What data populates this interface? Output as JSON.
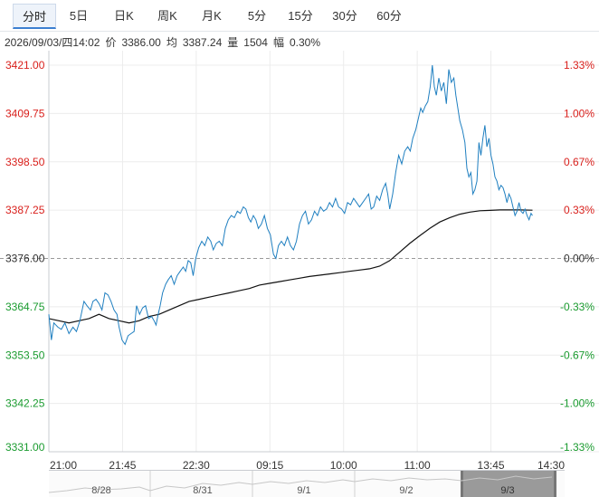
{
  "tabs": [
    {
      "label": "分时",
      "active": true
    },
    {
      "label": "5日",
      "active": false
    },
    {
      "label": "日K",
      "active": false
    },
    {
      "label": "周K",
      "active": false
    },
    {
      "label": "月K",
      "active": false
    },
    {
      "label": "5分",
      "active": false
    },
    {
      "label": "15分",
      "active": false
    },
    {
      "label": "30分",
      "active": false
    },
    {
      "label": "60分",
      "active": false
    }
  ],
  "info": {
    "datetime": "2026/09/03/四14:02",
    "price_label": "价",
    "price": "3386.00",
    "avg_label": "均",
    "avg": "3387.24",
    "volume_label": "量",
    "volume": "1504",
    "amplitude_label": "幅",
    "amplitude": "0.30%"
  },
  "colors": {
    "up": "#d9201c",
    "down": "#1a9b2f",
    "neutral": "#333333",
    "price_line": "#1f7fc0",
    "avg_line": "#111111",
    "grid": "#ececec",
    "ref_line": "#999999"
  },
  "chart_data": {
    "type": "line",
    "reference": 3376.0,
    "ylim": [
      3331.0,
      3421.0
    ],
    "y_ticks": [
      {
        "value": "3421.00",
        "pct": "1.33%",
        "dir": "up"
      },
      {
        "value": "3409.75",
        "pct": "1.00%",
        "dir": "up"
      },
      {
        "value": "3398.50",
        "pct": "0.67%",
        "dir": "up"
      },
      {
        "value": "3387.25",
        "pct": "0.33%",
        "dir": "up"
      },
      {
        "value": "3376.00",
        "pct": "0.00%",
        "dir": "flat"
      },
      {
        "value": "3364.75",
        "pct": "-0.33%",
        "dir": "down"
      },
      {
        "value": "3353.50",
        "pct": "-0.67%",
        "dir": "down"
      },
      {
        "value": "3342.25",
        "pct": "-1.00%",
        "dir": "down"
      },
      {
        "value": "3331.00",
        "pct": "-1.33%",
        "dir": "down"
      }
    ],
    "x_ticks": [
      "21:00",
      "21:45",
      "22:30",
      "09:15",
      "10:00",
      "11:00",
      "13:45",
      "14:30"
    ],
    "x_index_range": [
      0,
      100
    ],
    "x_tick_index": [
      0,
      14.7,
      29.4,
      44.1,
      58.8,
      73.5,
      88.2,
      102.9
    ],
    "series": [
      {
        "key": "price",
        "points": [
          [
            0,
            3363
          ],
          [
            0.5,
            3357
          ],
          [
            1,
            3361
          ],
          [
            1.8,
            3360
          ],
          [
            2.5,
            3359.5
          ],
          [
            3.2,
            3361
          ],
          [
            4,
            3358.5
          ],
          [
            4.8,
            3360
          ],
          [
            5.5,
            3359
          ],
          [
            6.2,
            3361.5
          ],
          [
            7,
            3366
          ],
          [
            7.6,
            3365
          ],
          [
            8.3,
            3364
          ],
          [
            8.8,
            3366
          ],
          [
            9.4,
            3366.5
          ],
          [
            10,
            3365.5
          ],
          [
            10.6,
            3364
          ],
          [
            11.2,
            3368
          ],
          [
            11.8,
            3367.5
          ],
          [
            12.4,
            3366
          ],
          [
            13,
            3364
          ],
          [
            13.6,
            3363
          ],
          [
            14,
            3360
          ],
          [
            14.6,
            3357
          ],
          [
            15.2,
            3356
          ],
          [
            15.8,
            3358
          ],
          [
            16.4,
            3358.5
          ],
          [
            17,
            3359
          ],
          [
            17.5,
            3365
          ],
          [
            18.1,
            3363
          ],
          [
            18.7,
            3364.5
          ],
          [
            19.3,
            3365
          ],
          [
            19.9,
            3362
          ],
          [
            20.5,
            3362.5
          ],
          [
            21,
            3361.5
          ],
          [
            21.4,
            3360.5
          ],
          [
            21.8,
            3363
          ],
          [
            22.2,
            3365
          ],
          [
            22.7,
            3368
          ],
          [
            23.3,
            3370
          ],
          [
            23.8,
            3371
          ],
          [
            24.4,
            3372
          ],
          [
            25,
            3370
          ],
          [
            25.6,
            3372
          ],
          [
            26.2,
            3373
          ],
          [
            26.8,
            3374
          ],
          [
            27.3,
            3373
          ],
          [
            27.8,
            3375.5
          ],
          [
            28.3,
            3375
          ],
          [
            28.8,
            3372
          ],
          [
            29.3,
            3376
          ],
          [
            29.9,
            3378.5
          ],
          [
            30.5,
            3380
          ],
          [
            31.1,
            3379
          ],
          [
            31.7,
            3381
          ],
          [
            32.3,
            3380
          ],
          [
            32.8,
            3378
          ],
          [
            33.4,
            3379.5
          ],
          [
            34,
            3380
          ],
          [
            34.6,
            3379
          ],
          [
            35.2,
            3383
          ],
          [
            35.8,
            3385
          ],
          [
            36.4,
            3386
          ],
          [
            37,
            3385.5
          ],
          [
            37.6,
            3387
          ],
          [
            38.2,
            3386.5
          ],
          [
            38.8,
            3388
          ],
          [
            39.3,
            3387.5
          ],
          [
            39.8,
            3385.5
          ],
          [
            40.3,
            3384.5
          ],
          [
            40.8,
            3386
          ],
          [
            41.3,
            3385
          ],
          [
            41.8,
            3383
          ],
          [
            42.4,
            3384
          ],
          [
            43,
            3386
          ],
          [
            43.6,
            3383
          ],
          [
            44.2,
            3381.5
          ],
          [
            44.8,
            3377
          ],
          [
            45.3,
            3376
          ],
          [
            45.8,
            3379
          ],
          [
            46.4,
            3380
          ],
          [
            47,
            3379
          ],
          [
            47.6,
            3381
          ],
          [
            48.2,
            3379
          ],
          [
            48.8,
            3378
          ],
          [
            49.4,
            3380
          ],
          [
            50,
            3384
          ],
          [
            50.6,
            3386
          ],
          [
            51.2,
            3387
          ],
          [
            51.8,
            3384
          ],
          [
            52.4,
            3385
          ],
          [
            53,
            3387
          ],
          [
            53.6,
            3386
          ],
          [
            54.2,
            3388
          ],
          [
            54.8,
            3387
          ],
          [
            55.4,
            3387.5
          ],
          [
            56,
            3389
          ],
          [
            56.6,
            3388
          ],
          [
            57.2,
            3390
          ],
          [
            57.8,
            3388
          ],
          [
            58.4,
            3387.5
          ],
          [
            59,
            3386.5
          ],
          [
            59.6,
            3389
          ],
          [
            60.2,
            3388.5
          ],
          [
            60.8,
            3390
          ],
          [
            61.4,
            3389
          ],
          [
            62,
            3388
          ],
          [
            62.6,
            3389
          ],
          [
            63.2,
            3390
          ],
          [
            63.8,
            3391
          ],
          [
            64.3,
            3387.5
          ],
          [
            64.8,
            3388
          ],
          [
            65.4,
            3390.5
          ],
          [
            66,
            3389.5
          ],
          [
            66.6,
            3392
          ],
          [
            67.2,
            3393.5
          ],
          [
            67.6,
            3391
          ],
          [
            68,
            3387.5
          ],
          [
            68.6,
            3391
          ],
          [
            69.2,
            3396
          ],
          [
            69.8,
            3400
          ],
          [
            70.4,
            3398
          ],
          [
            71,
            3401
          ],
          [
            71.6,
            3402
          ],
          [
            72.1,
            3401
          ],
          [
            72.6,
            3404
          ],
          [
            73.2,
            3406
          ],
          [
            73.8,
            3409
          ],
          [
            74.2,
            3411
          ],
          [
            74.6,
            3410
          ],
          [
            75.1,
            3411.5
          ],
          [
            75.6,
            3412.5
          ],
          [
            76.1,
            3416
          ],
          [
            76.5,
            3421
          ],
          [
            76.9,
            3416
          ],
          [
            77.3,
            3414
          ],
          [
            77.8,
            3418
          ],
          [
            78.3,
            3415
          ],
          [
            78.8,
            3417
          ],
          [
            79.3,
            3412
          ],
          [
            79.8,
            3420
          ],
          [
            80.3,
            3417
          ],
          [
            80.8,
            3418
          ],
          [
            81.2,
            3414
          ],
          [
            81.6,
            3411
          ],
          [
            82,
            3408
          ],
          [
            82.5,
            3406
          ],
          [
            83,
            3403
          ],
          [
            83.4,
            3397
          ],
          [
            83.8,
            3395
          ],
          [
            84.2,
            3396
          ],
          [
            84.6,
            3391
          ],
          [
            85,
            3392
          ],
          [
            85.4,
            3394
          ],
          [
            85.8,
            3403
          ],
          [
            86.2,
            3400
          ],
          [
            86.6,
            3404
          ],
          [
            87,
            3407
          ],
          [
            87.4,
            3402
          ],
          [
            87.8,
            3404
          ],
          [
            88.2,
            3400
          ],
          [
            88.6,
            3398
          ],
          [
            89,
            3395
          ],
          [
            89.4,
            3394
          ],
          [
            89.8,
            3392
          ],
          [
            90.2,
            3393
          ],
          [
            90.6,
            3392.5
          ],
          [
            91,
            3391
          ],
          [
            91.4,
            3389
          ],
          [
            91.8,
            3391
          ],
          [
            92.2,
            3390
          ],
          [
            92.6,
            3388
          ],
          [
            93,
            3386
          ],
          [
            93.4,
            3387
          ],
          [
            93.8,
            3389
          ],
          [
            94.2,
            3387
          ],
          [
            94.6,
            3386.5
          ],
          [
            95,
            3387.5
          ],
          [
            95.4,
            3386
          ],
          [
            95.8,
            3385
          ],
          [
            96.2,
            3386.5
          ],
          [
            96.5,
            3386
          ]
        ]
      },
      {
        "key": "avg",
        "points": [
          [
            0,
            3362
          ],
          [
            2,
            3361.5
          ],
          [
            4,
            3361
          ],
          [
            6,
            3361.5
          ],
          [
            8,
            3362
          ],
          [
            10,
            3363
          ],
          [
            12,
            3362
          ],
          [
            14,
            3361.5
          ],
          [
            16,
            3361
          ],
          [
            18,
            3361.5
          ],
          [
            20,
            3362.5
          ],
          [
            22,
            3363
          ],
          [
            24,
            3364
          ],
          [
            26,
            3365
          ],
          [
            28,
            3366
          ],
          [
            30,
            3366.5
          ],
          [
            32,
            3367
          ],
          [
            34,
            3367.5
          ],
          [
            36,
            3368
          ],
          [
            38,
            3368.5
          ],
          [
            40,
            3369
          ],
          [
            42,
            3369.8
          ],
          [
            44,
            3370.2
          ],
          [
            46,
            3370.6
          ],
          [
            48,
            3371
          ],
          [
            50,
            3371.4
          ],
          [
            52,
            3371.8
          ],
          [
            54,
            3372.1
          ],
          [
            56,
            3372.4
          ],
          [
            58,
            3372.7
          ],
          [
            60,
            3373
          ],
          [
            62,
            3373.3
          ],
          [
            64,
            3373.6
          ],
          [
            66,
            3374.2
          ],
          [
            68,
            3375.5
          ],
          [
            70,
            3377.5
          ],
          [
            72,
            3379.5
          ],
          [
            74,
            3381.3
          ],
          [
            76,
            3383
          ],
          [
            78,
            3384.5
          ],
          [
            80,
            3385.5
          ],
          [
            82,
            3386.3
          ],
          [
            84,
            3386.8
          ],
          [
            86,
            3387.1
          ],
          [
            88,
            3387.2
          ],
          [
            90,
            3387.3
          ],
          [
            92,
            3387.3
          ],
          [
            94,
            3387.3
          ],
          [
            96.5,
            3387.24
          ]
        ]
      }
    ]
  },
  "navigator": {
    "dates": [
      "8/28",
      "8/31",
      "9/1",
      "9/2",
      "9/3"
    ],
    "selected": "9/3"
  }
}
